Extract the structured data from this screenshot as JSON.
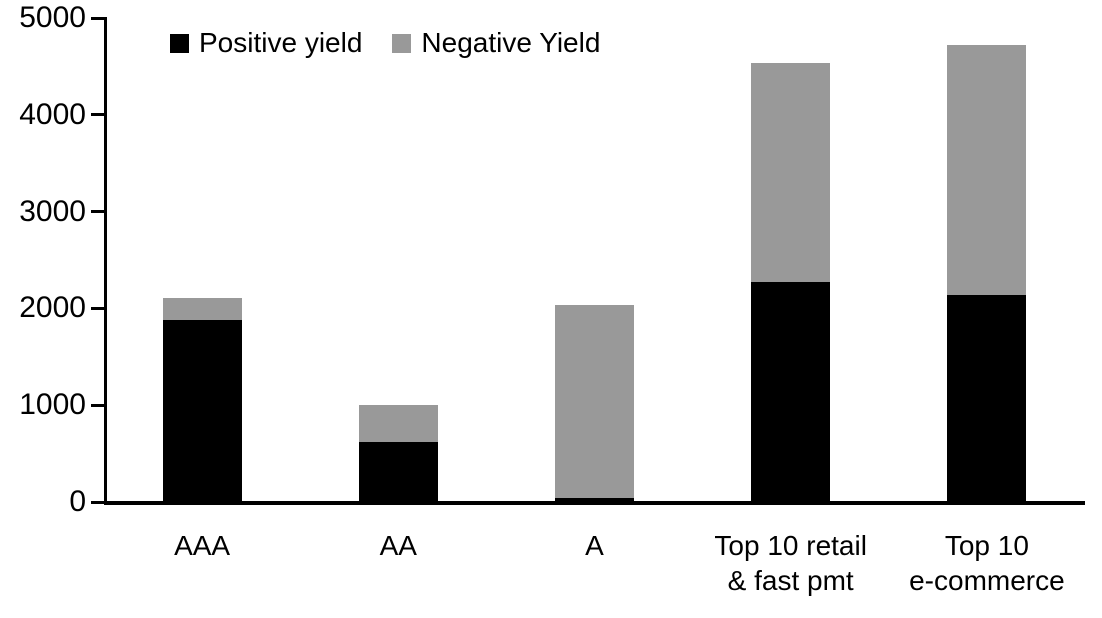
{
  "chart_data": {
    "type": "bar",
    "stacked": true,
    "title": "",
    "xlabel": "",
    "ylabel": "",
    "categories": [
      "AAA",
      "AA",
      "A",
      "Top 10 retail\n& fast pmt",
      "Top 10\ne-commerce"
    ],
    "series": [
      {
        "name": "Positive yield",
        "color": "#000000",
        "values": [
          1880,
          620,
          45,
          2270,
          2140
        ]
      },
      {
        "name": "Negative Yield",
        "color": "#999999",
        "values": [
          230,
          380,
          1985,
          2270,
          2580
        ]
      }
    ],
    "ylim": [
      0,
      5000
    ],
    "yticks": [
      0,
      1000,
      2000,
      3000,
      4000,
      5000
    ],
    "grid": false,
    "legend_position": "top"
  },
  "colors": {
    "positive_series": "#000000",
    "negative_series": "#999999",
    "axis": "#000000",
    "background": "#ffffff"
  }
}
